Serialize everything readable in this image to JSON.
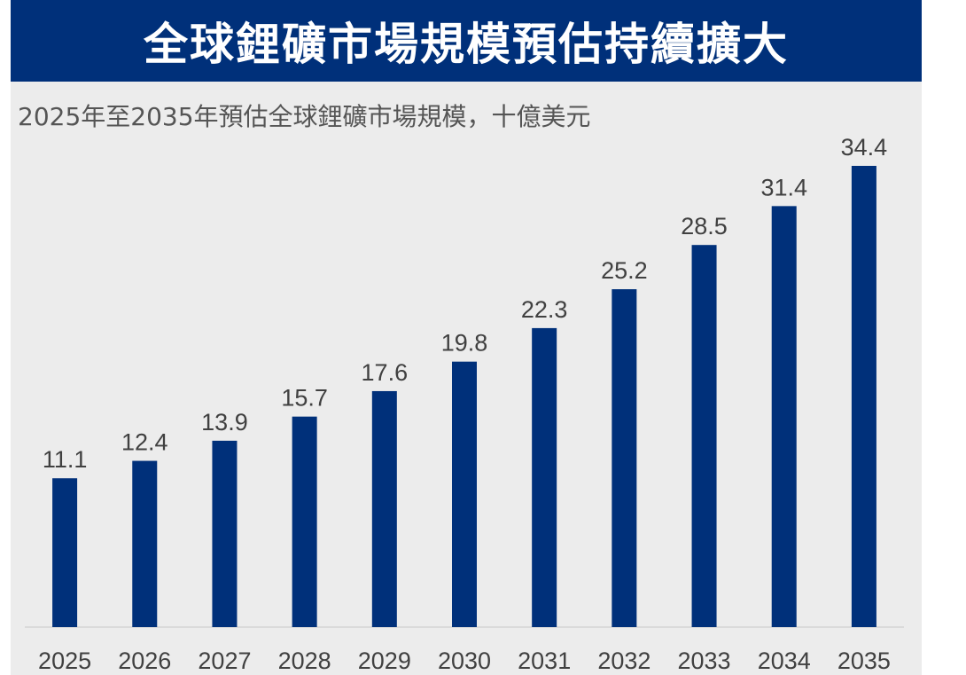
{
  "header": {
    "title": "全球鋰礦市場規模預估持續擴大"
  },
  "colors": {
    "bar": "#00307a",
    "title_bg": "#00307a",
    "plot_bg": "#ececec",
    "text": "#404040"
  },
  "chart_data": {
    "type": "bar",
    "title": "全球鋰礦市場規模預估持續擴大",
    "subtitle": "2025年至2035年預估全球鋰礦市場規模，十億美元",
    "xlabel": "",
    "ylabel": "十億美元",
    "categories": [
      "2025",
      "2026",
      "2027",
      "2028",
      "2029",
      "2030",
      "2031",
      "2032",
      "2033",
      "2034",
      "2035"
    ],
    "values": [
      11.1,
      12.4,
      13.9,
      15.7,
      17.6,
      19.8,
      22.3,
      25.2,
      28.5,
      31.4,
      34.4
    ],
    "value_labels": [
      "11.1",
      "12.4",
      "13.9",
      "15.7",
      "17.6",
      "19.8",
      "22.3",
      "25.2",
      "28.5",
      "31.4",
      "34.4"
    ],
    "ylim": [
      0,
      34.4
    ],
    "grid": false,
    "legend": "none"
  }
}
